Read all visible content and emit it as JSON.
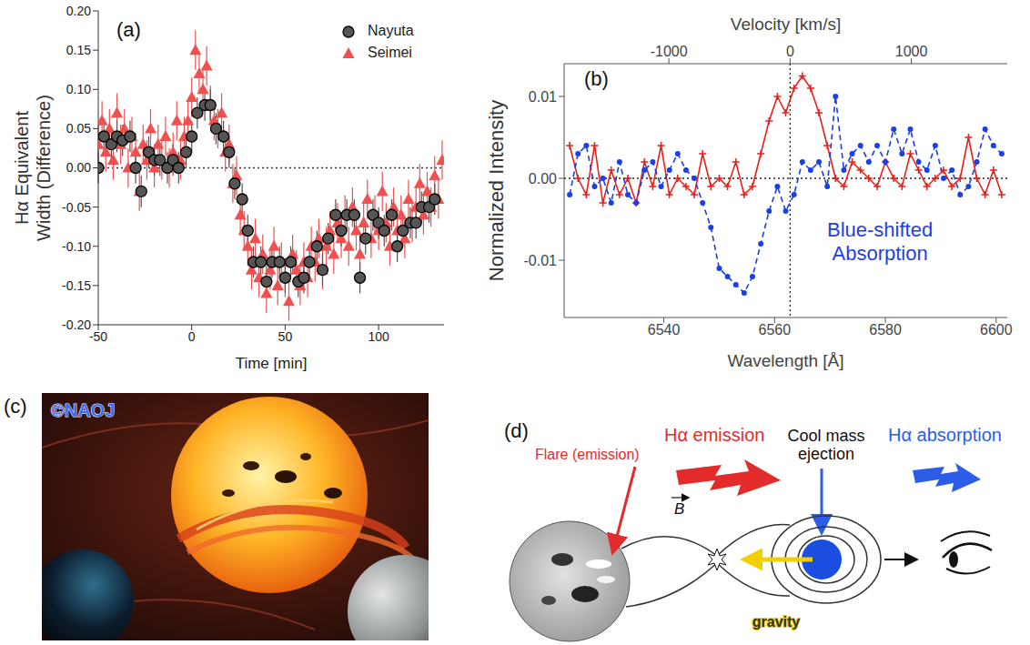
{
  "chart_data": [
    {
      "type": "scatter",
      "panel": "(a)",
      "x_label": "Time [min]",
      "y_label": "Hα Equivalent Width (Difference)",
      "xlim": [
        -50,
        135
      ],
      "xticks": [
        -50,
        0,
        50,
        100
      ],
      "ylim": [
        -0.2,
        0.2
      ],
      "yticks": [
        {
          "value": -0.2,
          "label": "-0.20"
        },
        {
          "value": -0.15,
          "label": "-0.15"
        },
        {
          "value": -0.1,
          "label": "-0.10"
        },
        {
          "value": -0.05,
          "label": "-0.05"
        },
        {
          "value": 0,
          "label": "0.00"
        },
        {
          "value": 0.05,
          "label": "0.05"
        },
        {
          "value": 0.1,
          "label": "0.10"
        },
        {
          "value": 0.15,
          "label": "0.15"
        },
        {
          "value": 0.2,
          "label": "0.20"
        }
      ],
      "legend": "upper right",
      "reference_lines": [
        {
          "axis": "y",
          "value": 0
        }
      ],
      "series": [
        {
          "name": "Nayuta",
          "color": "#555555",
          "marker": "circle",
          "x": [
            -50,
            -47,
            -43,
            -40,
            -37,
            -33,
            -30,
            -27,
            -23,
            -20,
            -17,
            -13,
            -10,
            -7,
            -3,
            0,
            3,
            7,
            10,
            13,
            17,
            20,
            23,
            27,
            30,
            33,
            37,
            40,
            43,
            47,
            50,
            53,
            57,
            60,
            63,
            67,
            70,
            73,
            77,
            80,
            83,
            87,
            90,
            93,
            97,
            100,
            103,
            107,
            110,
            113,
            117,
            120,
            123,
            127,
            130
          ],
          "values": [
            0,
            0.04,
            0.03,
            0.04,
            0.035,
            0.04,
            0,
            -0.03,
            0.02,
            0.01,
            0.01,
            0,
            0.01,
            0,
            0.02,
            0.04,
            0.07,
            0.08,
            0.08,
            0.05,
            0.04,
            0.02,
            -0.02,
            -0.04,
            -0.08,
            -0.12,
            -0.12,
            -0.145,
            -0.12,
            -0.12,
            -0.14,
            -0.12,
            -0.145,
            -0.14,
            -0.12,
            -0.1,
            -0.13,
            -0.09,
            -0.06,
            -0.08,
            -0.06,
            -0.06,
            -0.14,
            -0.09,
            -0.06,
            -0.07,
            -0.08,
            -0.06,
            -0.1,
            -0.08,
            -0.07,
            -0.07,
            -0.05,
            -0.05,
            -0.04
          ],
          "errors": [
            0.02,
            0.02,
            0.02,
            0.02,
            0.02,
            0.02,
            0.02,
            0.02,
            0.02,
            0.02,
            0.02,
            0.02,
            0.02,
            0.02,
            0.02,
            0.02,
            0.02,
            0.02,
            0.02,
            0.02,
            0.02,
            0.02,
            0.02,
            0.02,
            0.02,
            0.02,
            0.02,
            0.02,
            0.02,
            0.02,
            0.02,
            0.02,
            0.02,
            0.02,
            0.02,
            0.02,
            0.02,
            0.02,
            0.02,
            0.02,
            0.02,
            0.02,
            0.02,
            0.02,
            0.02,
            0.02,
            0.02,
            0.02,
            0.02,
            0.02,
            0.02,
            0.02,
            0.02,
            0.02,
            0.02
          ]
        },
        {
          "name": "Seimei",
          "color": "#f05050",
          "marker": "triangle",
          "x": [
            -50,
            -48,
            -46,
            -44,
            -42,
            -40,
            -38,
            -36,
            -34,
            -32,
            -30,
            -28,
            -26,
            -24,
            -22,
            -20,
            -18,
            -16,
            -14,
            -12,
            -10,
            -8,
            -6,
            -4,
            -2,
            0,
            2,
            4,
            6,
            8,
            10,
            12,
            14,
            16,
            18,
            20,
            22,
            24,
            26,
            28,
            30,
            32,
            34,
            36,
            38,
            40,
            42,
            44,
            46,
            48,
            50,
            52,
            54,
            56,
            58,
            60,
            62,
            64,
            66,
            68,
            70,
            72,
            74,
            76,
            78,
            80,
            82,
            84,
            86,
            88,
            90,
            92,
            94,
            96,
            98,
            100,
            102,
            104,
            106,
            108,
            110,
            112,
            114,
            116,
            118,
            120,
            122,
            124,
            126,
            128,
            130,
            132,
            134
          ],
          "values": [
            0.03,
            0.06,
            0.02,
            0.05,
            0.01,
            0.07,
            0.03,
            0.05,
            0,
            0.04,
            0.02,
            -0.03,
            0.03,
            0.01,
            0.05,
            0,
            0.03,
            0.01,
            0.04,
            0,
            0.02,
            0.06,
            0.01,
            0.04,
            0.06,
            0.09,
            0.15,
            0.12,
            0.1,
            0.13,
            0.08,
            0.06,
            0.05,
            0.07,
            0.02,
            0.03,
            -0.02,
            -0.01,
            -0.06,
            -0.08,
            -0.1,
            -0.13,
            -0.09,
            -0.14,
            -0.11,
            -0.16,
            -0.13,
            -0.1,
            -0.15,
            -0.12,
            -0.14,
            -0.17,
            -0.11,
            -0.13,
            -0.15,
            -0.12,
            -0.14,
            -0.1,
            -0.12,
            -0.09,
            -0.13,
            -0.1,
            -0.08,
            -0.11,
            -0.07,
            -0.09,
            -0.06,
            -0.1,
            -0.05,
            -0.08,
            -0.11,
            -0.07,
            -0.04,
            -0.09,
            -0.06,
            -0.08,
            -0.03,
            -0.07,
            -0.1,
            -0.05,
            -0.08,
            -0.06,
            -0.09,
            -0.04,
            -0.07,
            -0.05,
            -0.02,
            -0.06,
            -0.03,
            -0.05,
            -0.01,
            -0.04,
            0.01
          ],
          "errors": [
            0.025,
            0.025,
            0.025,
            0.025,
            0.025,
            0.025,
            0.025,
            0.025,
            0.025,
            0.025,
            0.025,
            0.025,
            0.025,
            0.025,
            0.025,
            0.025,
            0.025,
            0.025,
            0.025,
            0.025,
            0.025,
            0.025,
            0.025,
            0.025,
            0.025,
            0.025,
            0.025,
            0.025,
            0.025,
            0.025,
            0.025,
            0.025,
            0.025,
            0.025,
            0.025,
            0.025,
            0.025,
            0.025,
            0.025,
            0.025,
            0.025,
            0.025,
            0.025,
            0.025,
            0.025,
            0.025,
            0.025,
            0.025,
            0.025,
            0.025,
            0.025,
            0.025,
            0.025,
            0.025,
            0.025,
            0.025,
            0.025,
            0.025,
            0.025,
            0.025,
            0.025,
            0.025,
            0.025,
            0.025,
            0.025,
            0.025,
            0.025,
            0.025,
            0.025,
            0.025,
            0.025,
            0.025,
            0.025,
            0.025,
            0.025,
            0.025,
            0.025,
            0.025,
            0.025,
            0.025,
            0.025,
            0.025,
            0.025,
            0.025,
            0.025,
            0.025,
            0.025,
            0.025,
            0.025,
            0.025,
            0.025,
            0.025,
            0.025
          ]
        }
      ]
    },
    {
      "type": "line",
      "panel": "(b)",
      "x_label": "Wavelength [Å]",
      "x2_label": "Velocity [km/s]",
      "y_label": "Normalized Intensity",
      "xlim": [
        6522,
        6602
      ],
      "xticks": [
        6540,
        6560,
        6580,
        6600
      ],
      "x2lim": [
        -1864,
        1791
      ],
      "x2ticks": [
        -1000,
        0,
        1000
      ],
      "ylim": [
        -0.017,
        0.014
      ],
      "yticks": [
        -0.01,
        {
          "value": 0,
          "label": "0.00"
        },
        0.01
      ],
      "reference_lines": [
        {
          "axis": "y",
          "value": 0
        },
        {
          "axis": "x2",
          "value": 0
        }
      ],
      "annotations": [
        {
          "text": "Blue-shifted Absorption",
          "color": "#1f3fe0"
        }
      ],
      "x": [
        6523,
        6524.5,
        6526,
        6527.5,
        6529,
        6530.5,
        6532,
        6533.5,
        6535,
        6536.5,
        6538,
        6539.5,
        6541,
        6542.5,
        6544,
        6545.5,
        6547,
        6548.5,
        6550,
        6551.5,
        6553,
        6554.5,
        6556,
        6557.5,
        6559,
        6560.5,
        6562,
        6563.5,
        6565,
        6566.5,
        6568,
        6569.5,
        6571,
        6572.5,
        6574,
        6575.5,
        6577,
        6578.5,
        6580,
        6581.5,
        6583,
        6584.5,
        6586,
        6587.5,
        6589,
        6590.5,
        6592,
        6593.5,
        6595,
        6596.5,
        6598,
        6599.5,
        6601
      ],
      "series": [
        {
          "color": "#e8201a",
          "marker": "plus",
          "line_style": "solid",
          "values": [
            0.004,
            0,
            -0.002,
            0.004,
            -0.003,
            0.001,
            -0.002,
            0,
            -0.003,
            0.002,
            -0.001,
            0.004,
            -0.002,
            0,
            -0.001,
            -0.002,
            0.003,
            -0.001,
            0,
            -0.001,
            0.002,
            -0.002,
            -0.001,
            0.003,
            0.007,
            0.01,
            0.008,
            0.011,
            0.0125,
            0.011,
            0.008,
            0.004,
            0,
            -0.001,
            0.002,
            0.001,
            0,
            -0.001,
            0.002,
            0,
            -0.001,
            0.003,
            0.001,
            -0.001,
            0,
            0.001,
            -0.001,
            0,
            0.005,
            0,
            -0.002,
            0.001,
            -0.002
          ]
        },
        {
          "color": "#1a3ee8",
          "marker": "circle",
          "line_style": "dashed",
          "values": [
            -0.002,
            0.003,
            0.004,
            -0.001,
            0,
            -0.003,
            0.002,
            -0.002,
            -0.003,
            0.001,
            0.002,
            -0.001,
            0.001,
            0.003,
            0.001,
            0,
            -0.003,
            -0.006,
            -0.011,
            -0.012,
            -0.013,
            -0.014,
            -0.012,
            -0.008,
            -0.004,
            -0.001,
            -0.004,
            -0.002,
            0.002,
            0.001,
            0.002,
            -0.001,
            0.01,
            0.001,
            0.003,
            0.004,
            0.002,
            0.004,
            0.002,
            0.006,
            0.003,
            0.006,
            0.002,
            0.001,
            0.004,
            0,
            0.001,
            -0.002,
            -0.001,
            0.002,
            0.006,
            0.004,
            0.003
          ]
        }
      ]
    }
  ],
  "illustration": {
    "panel": "(c)",
    "credit": "©NAOJ"
  },
  "diagram": {
    "panel": "(d)",
    "flare": "Flare (emission)",
    "emission": "Hα emission",
    "ejection": "Cool mass ejection",
    "absorption": "Hα absorption",
    "gravity": "gravity",
    "field": "B"
  }
}
